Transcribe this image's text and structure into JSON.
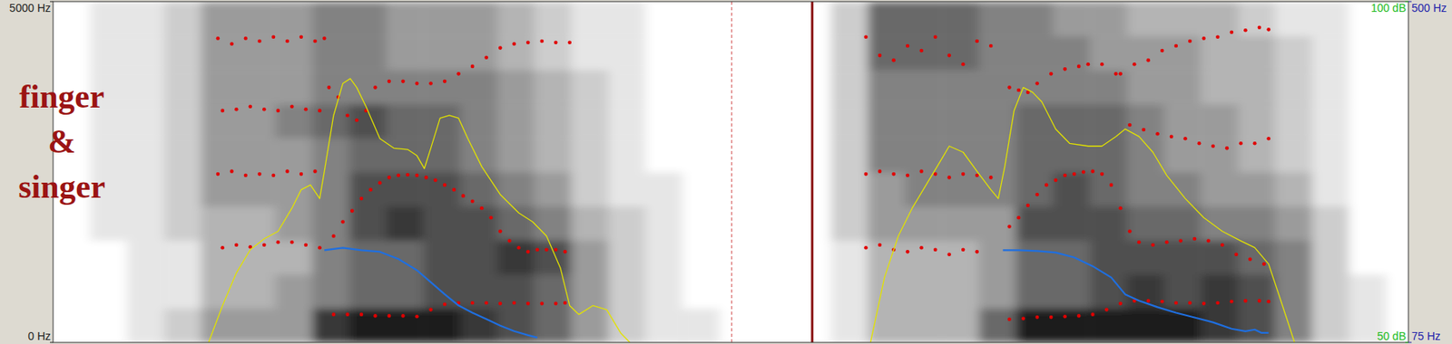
{
  "chart_data": [
    {
      "type": "spectrogram",
      "xlim": [
        0,
        1464
      ],
      "ylim": [
        0,
        5000
      ],
      "yticks": [
        {
          "value": 0,
          "label": "0 Hz"
        },
        {
          "value": 5000,
          "label": "5000 Hz"
        }
      ],
      "tick_labels": "y",
      "annotations": [
        "finger",
        "&",
        "singer"
      ],
      "cursor": 733,
      "boundary": 820,
      "cell_range": [
        0,
        9
      ],
      "time_edges": [
        0,
        40,
        80,
        120,
        160,
        200,
        240,
        280,
        320,
        360,
        400,
        440,
        480,
        520,
        560,
        600,
        640,
        680,
        720,
        760,
        800,
        840,
        880,
        920,
        960,
        1000,
        1040,
        1080,
        1120,
        1160,
        1200,
        1240,
        1280,
        1320,
        1360,
        1400,
        1440,
        1464
      ],
      "freq_edges": [
        0,
        500,
        1000,
        1500,
        2000,
        2500,
        3000,
        3500,
        4000,
        4500,
        5000
      ],
      "cells": [
        [
          0,
          0,
          0,
          0,
          0,
          0,
          0,
          0,
          0,
          0
        ],
        [
          0,
          0,
          0,
          1,
          1,
          1,
          1,
          1,
          1,
          1
        ],
        [
          1,
          1,
          1,
          1,
          1,
          1,
          1,
          1,
          1,
          1
        ],
        [
          2,
          1,
          1,
          2,
          2,
          2,
          2,
          2,
          2,
          2
        ],
        [
          4,
          3,
          3,
          3,
          4,
          4,
          4,
          4,
          4,
          4
        ],
        [
          4,
          3,
          3,
          3,
          4,
          4,
          4,
          4,
          4,
          4
        ],
        [
          4,
          4,
          3,
          4,
          4,
          4,
          5,
          4,
          4,
          4
        ],
        [
          8,
          5,
          5,
          5,
          5,
          5,
          6,
          5,
          5,
          5
        ],
        [
          9,
          6,
          6,
          7,
          7,
          6,
          7,
          5,
          5,
          5
        ],
        [
          9,
          6,
          6,
          8,
          7,
          6,
          6,
          5,
          4,
          4
        ],
        [
          9,
          7,
          7,
          7,
          7,
          6,
          6,
          5,
          4,
          4
        ],
        [
          8,
          7,
          7,
          7,
          6,
          5,
          5,
          5,
          4,
          4
        ],
        [
          7,
          7,
          8,
          6,
          5,
          4,
          4,
          4,
          3,
          3
        ],
        [
          6,
          6,
          7,
          5,
          4,
          3,
          3,
          3,
          2,
          2
        ],
        [
          4,
          4,
          4,
          3,
          2,
          2,
          2,
          2,
          1,
          1
        ],
        [
          2,
          2,
          2,
          2,
          1,
          1,
          1,
          1,
          1,
          1
        ],
        [
          1,
          1,
          1,
          1,
          1,
          0,
          0,
          0,
          0,
          0
        ],
        [
          1,
          0,
          0,
          0,
          0,
          0,
          0,
          0,
          0,
          0
        ],
        [
          0,
          0,
          0,
          0,
          0,
          0,
          0,
          0,
          0,
          0
        ],
        [
          0,
          0,
          0,
          0,
          0,
          0,
          0,
          0,
          0,
          0
        ],
        [
          0,
          0,
          0,
          0,
          0,
          0,
          0,
          0,
          0,
          0
        ],
        [
          1,
          1,
          1,
          2,
          2,
          2,
          2,
          2,
          2,
          2
        ],
        [
          3,
          3,
          3,
          4,
          4,
          5,
          5,
          5,
          6,
          6
        ],
        [
          3,
          3,
          3,
          4,
          5,
          5,
          5,
          5,
          6,
          6
        ],
        [
          3,
          3,
          3,
          4,
          5,
          5,
          5,
          5,
          6,
          6
        ],
        [
          6,
          4,
          4,
          4,
          5,
          5,
          5,
          5,
          5,
          5
        ],
        [
          9,
          6,
          6,
          7,
          6,
          6,
          6,
          5,
          5,
          5
        ],
        [
          9,
          6,
          6,
          7,
          7,
          6,
          6,
          5,
          5,
          4
        ],
        [
          9,
          7,
          7,
          7,
          6,
          6,
          6,
          5,
          4,
          4
        ],
        [
          9,
          8,
          7,
          6,
          5,
          5,
          5,
          4,
          4,
          3
        ],
        [
          9,
          7,
          7,
          6,
          5,
          4,
          4,
          4,
          4,
          3
        ],
        [
          8,
          8,
          7,
          5,
          4,
          4,
          4,
          3,
          3,
          3
        ],
        [
          7,
          7,
          6,
          5,
          4,
          3,
          3,
          3,
          3,
          2
        ],
        [
          5,
          5,
          5,
          4,
          3,
          2,
          2,
          2,
          2,
          1
        ],
        [
          2,
          2,
          2,
          2,
          1,
          1,
          1,
          1,
          1,
          1
        ],
        [
          1,
          1,
          0,
          0,
          0,
          0,
          0,
          0,
          0,
          0
        ],
        [
          0,
          0,
          0,
          0,
          0,
          0,
          0,
          0,
          0,
          0
        ]
      ],
      "series": [
        {
          "type": "scatter",
          "color": "#e00000",
          "marker": "dot",
          "x": [
            303,
            318,
            333,
            348,
            363,
            378,
            393,
            408,
            423,
            438,
            453,
            468,
            483,
            498,
            513,
            528,
            543,
            553,
            1033,
            1048,
            1063,
            1078,
            1093,
            1108,
            1123,
            1138,
            1153,
            1168,
            1183,
            1198,
            1213,
            1228,
            1243,
            1258,
            1273,
            1288,
            1303,
            1313
          ],
          "values": [
            410,
            410,
            410,
            390,
            390,
            390,
            380,
            480,
            560,
            580,
            580,
            580,
            570,
            580,
            570,
            570,
            570,
            580,
            340,
            350,
            370,
            370,
            380,
            390,
            410,
            480,
            570,
            610,
            610,
            600,
            580,
            580,
            570,
            580,
            600,
            610,
            610,
            600
          ]
        },
        {
          "type": "scatter",
          "color": "#e00000",
          "marker": "dot",
          "x": [
            183,
            198,
            213,
            228,
            243,
            258,
            273,
            288,
            303,
            313,
            323,
            333,
            343,
            353,
            363,
            373,
            383,
            393,
            403,
            413,
            423,
            433,
            443,
            453,
            463,
            473,
            483,
            493,
            503,
            513,
            523,
            533,
            543,
            553,
            878,
            893,
            908,
            923,
            938,
            953,
            968,
            983,
            998,
            1033,
            1043,
            1053,
            1063,
            1073,
            1083,
            1093,
            1103,
            1113,
            1123,
            1133,
            1143,
            1153,
            1163,
            1173,
            1188,
            1203,
            1218,
            1233,
            1248,
            1263,
            1278,
            1293,
            1308
          ],
          "values": [
            1390,
            1430,
            1400,
            1430,
            1470,
            1470,
            1430,
            1390,
            1560,
            1770,
            1930,
            2110,
            2240,
            2340,
            2420,
            2450,
            2460,
            2450,
            2420,
            2380,
            2310,
            2240,
            2150,
            2070,
            1970,
            1830,
            1630,
            1490,
            1390,
            1330,
            1360,
            1360,
            1360,
            1330,
            1390,
            1430,
            1360,
            1330,
            1390,
            1360,
            1290,
            1360,
            1330,
            1700,
            1830,
            2010,
            2170,
            2310,
            2380,
            2450,
            2470,
            2500,
            2510,
            2470,
            2310,
            1970,
            1630,
            1470,
            1430,
            1470,
            1490,
            1520,
            1490,
            1430,
            1290,
            1220,
            1150
          ]
        },
        {
          "type": "scatter",
          "color": "#e00000",
          "marker": "dot",
          "x": [
            178,
            193,
            208,
            223,
            238,
            253,
            268,
            283,
            298,
            308,
            318,
            328,
            338,
            348,
            363,
            378,
            393,
            408,
            423,
            438,
            453,
            468,
            483,
            498,
            513,
            528,
            543,
            558,
            878,
            893,
            908,
            923,
            938,
            953,
            968,
            983,
            998,
            1013,
            1033,
            1043,
            1053,
            1063,
            1078,
            1093,
            1108,
            1118,
            1133,
            1148,
            1163,
            1178,
            1193,
            1208,
            1223,
            1238,
            1253,
            1268,
            1283,
            1298,
            1313
          ],
          "values": [
            2470,
            2510,
            2450,
            2470,
            2450,
            2510,
            2470,
            2510,
            3740,
            3600,
            3330,
            3260,
            3400,
            3740,
            3830,
            3830,
            3800,
            3800,
            3830,
            3940,
            4050,
            4180,
            4320,
            4380,
            4400,
            4420,
            4400,
            4400,
            2470,
            2510,
            2470,
            2450,
            2510,
            2470,
            2420,
            2470,
            2450,
            2420,
            3740,
            3700,
            3670,
            3800,
            3940,
            4010,
            4050,
            4080,
            4080,
            3940,
            3190,
            3120,
            3060,
            3020,
            2990,
            2920,
            2880,
            2850,
            2920,
            2920,
            2990
          ]
        },
        {
          "type": "scatter",
          "color": "#e00000",
          "marker": "dot",
          "x": [
            178,
            193,
            208,
            223,
            238,
            253,
            268,
            283,
            293,
            878,
            893,
            908,
            923,
            938,
            953,
            968,
            983,
            998,
            1013,
            1153,
            1168,
            1183,
            1198,
            1213,
            1228,
            1243,
            1258,
            1273,
            1288,
            1303,
            1313
          ],
          "values": [
            4460,
            4380,
            4460,
            4420,
            4480,
            4420,
            4480,
            4420,
            4460,
            4480,
            4210,
            4140,
            4350,
            4280,
            4480,
            4210,
            4080,
            4420,
            4350,
            3940,
            4080,
            4140,
            4280,
            4350,
            4420,
            4460,
            4480,
            4550,
            4580,
            4620,
            4590
          ]
        },
        {
          "type": "scatter",
          "color": "#e00000",
          "marker": "dot",
          "x": [
            183,
            198,
            213,
            228,
            243,
            258,
            273,
            288
          ],
          "values": [
            3400,
            3420,
            3460,
            3420,
            3400,
            3460,
            3420,
            3400
          ]
        }
      ]
    },
    {
      "type": "line",
      "xlim": [
        0,
        1464
      ],
      "ylim": [
        50,
        100
      ],
      "yticks": [
        {
          "value": 50,
          "label": "50 dB"
        },
        {
          "value": 100,
          "label": "100 dB"
        }
      ],
      "tick_labels": "y",
      "series": [
        {
          "color": "#e2e200",
          "x": [
            168,
            183,
            198,
            213,
            228,
            243,
            258,
            268,
            278,
            288,
            293,
            303,
            313,
            321,
            328,
            338,
            353,
            368,
            383,
            393,
            401,
            408,
            418,
            428,
            438,
            448,
            463,
            483,
            503,
            518,
            533,
            548,
            558,
            568,
            583,
            598,
            613,
            623,
            null,
            883,
            898,
            913,
            928,
            943,
            958,
            968,
            983,
            998,
            1013,
            1021,
            1028,
            1038,
            1048,
            1058,
            1068,
            1083,
            1098,
            1118,
            1133,
            1148,
            1158,
            1173,
            1188,
            1203,
            1223,
            1243,
            1263,
            1283,
            1298,
            1313,
            1328,
            1341
          ],
          "values": [
            50.0,
            55.4,
            60.2,
            63.6,
            65.2,
            66.3,
            69.7,
            72.4,
            73.1,
            71.1,
            75.1,
            83.3,
            88.0,
            88.7,
            87.4,
            84.6,
            79.9,
            78.5,
            78.3,
            77.4,
            75.5,
            78.5,
            82.9,
            83.3,
            82.9,
            79.9,
            75.8,
            71.7,
            69.0,
            67.7,
            65.6,
            60.9,
            55.4,
            54.1,
            55.4,
            54.8,
            51.4,
            50.0,
            null,
            50.0,
            59.5,
            65.6,
            69.7,
            73.1,
            76.5,
            78.8,
            77.9,
            75.1,
            72.4,
            71.1,
            75.8,
            84.0,
            87.4,
            86.7,
            85.3,
            81.3,
            79.2,
            78.8,
            78.8,
            80.2,
            81.3,
            80.2,
            77.9,
            74.5,
            71.1,
            68.3,
            66.3,
            64.9,
            63.9,
            61.5,
            55.4,
            50.0
          ]
        }
      ]
    },
    {
      "type": "line",
      "xlim": [
        0,
        1464
      ],
      "ylim": [
        75,
        500
      ],
      "yticks": [
        {
          "value": 75,
          "label": "75 Hz"
        },
        {
          "value": 500,
          "label": "500 Hz"
        }
      ],
      "tick_labels": "y",
      "series": [
        {
          "color": "#1f6fe0",
          "x": [
            293,
            313,
            333,
            353,
            373,
            393,
            408,
            423,
            438,
            453,
            468,
            483,
            498,
            513,
            523,
            null,
            1026,
            1043,
            1063,
            1083,
            1103,
            1123,
            1143,
            1158,
            1173,
            1193,
            1213,
            1233,
            1253,
            1273,
            1288,
            1298,
            1305,
            1313
          ],
          "values": [
            190,
            193,
            190,
            188,
            179,
            165,
            150,
            135,
            121,
            112,
            104,
            96,
            89,
            84,
            81,
            null,
            190,
            190,
            189,
            187,
            181,
            170,
            156,
            135,
            127,
            119,
            112,
            106,
            100,
            92,
            89,
            91,
            87,
            87
          ]
        }
      ]
    }
  ]
}
